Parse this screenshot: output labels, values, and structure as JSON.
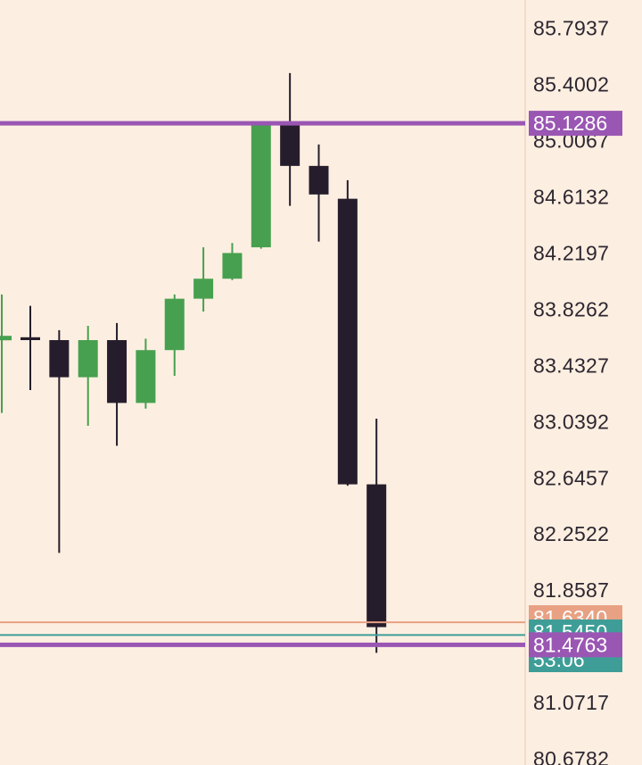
{
  "colors": {
    "background": "#fcefe1",
    "bull": "#47a04f",
    "bear": "#261d2c",
    "price_line": "#9a56b3",
    "orange_line": "#e8a183",
    "teal_line": "#3e9e97",
    "axis_text": "#2d2630",
    "axis_border": "#f1dccb"
  },
  "chart_data": {
    "type": "candlestick",
    "y_axis_position": "right",
    "ylim": [
      80.6782,
      85.8731
    ],
    "y_ticks": [
      "85.7937",
      "85.4002",
      "85.0067",
      "84.6132",
      "84.2197",
      "83.8262",
      "83.4327",
      "83.0392",
      "82.6457",
      "82.2522",
      "81.8587",
      "81.0717",
      "80.6782"
    ],
    "candles": [
      {
        "open": 83.63,
        "high": 83.85,
        "low": 83.26,
        "close": 83.61
      },
      {
        "open": 83.61,
        "high": 83.68,
        "low": 82.12,
        "close": 83.35
      },
      {
        "open": 83.35,
        "high": 83.71,
        "low": 83.01,
        "close": 83.61
      },
      {
        "open": 83.61,
        "high": 83.73,
        "low": 82.87,
        "close": 83.17
      },
      {
        "open": 83.17,
        "high": 83.62,
        "low": 83.13,
        "close": 83.54
      },
      {
        "open": 83.54,
        "high": 83.93,
        "low": 83.36,
        "close": 83.9
      },
      {
        "open": 83.9,
        "high": 84.26,
        "low": 83.81,
        "close": 84.04
      },
      {
        "open": 84.04,
        "high": 84.29,
        "low": 84.03,
        "close": 84.22
      },
      {
        "open": 84.26,
        "high": 85.14,
        "low": 84.25,
        "close": 85.12
      },
      {
        "open": 85.12,
        "high": 85.48,
        "low": 84.55,
        "close": 84.83
      },
      {
        "open": 84.83,
        "high": 84.98,
        "low": 84.3,
        "close": 84.63
      },
      {
        "open": 84.6,
        "high": 84.73,
        "low": 82.59,
        "close": 82.6
      },
      {
        "open": 82.6,
        "high": 83.06,
        "low": 81.42,
        "close": 81.6
      }
    ],
    "price_lines": [
      {
        "name": "upper",
        "value": 85.1286,
        "label": "85.1286",
        "color": "#9a56b3"
      },
      {
        "name": "orange",
        "value": 81.634,
        "label": "81.6340",
        "color": "#e8a183"
      },
      {
        "name": "teal",
        "value": 81.545,
        "label": "81.5450",
        "color": "#3e9e97"
      },
      {
        "name": "current",
        "value": 81.4763,
        "label": "81.4763",
        "color": "#9a56b3"
      }
    ],
    "countdown": "53:06"
  }
}
